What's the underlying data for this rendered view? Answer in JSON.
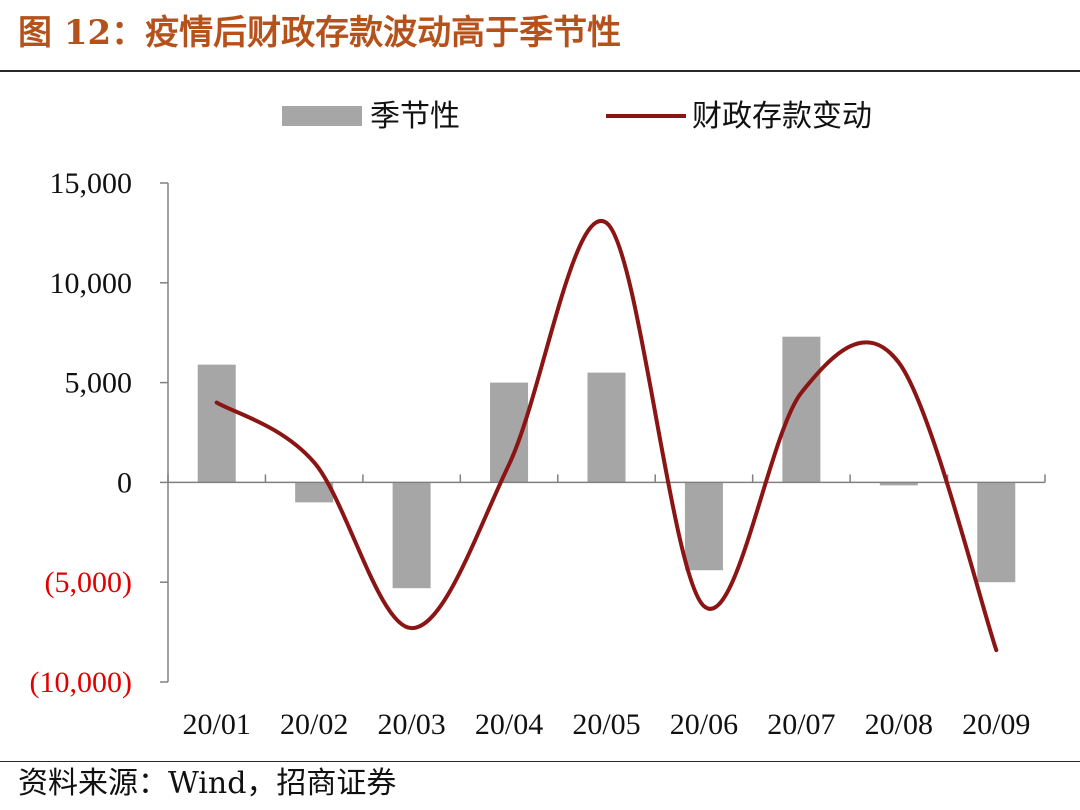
{
  "figure": {
    "title": "图 12：疫情后财政存款波动高于季节性",
    "source": "资料来源：Wind，招商证券"
  },
  "colors": {
    "title": "#b5521c",
    "bar": "#a6a6a6",
    "line": "#8b1414",
    "negative_tick": "#e00000",
    "axis": "#808080",
    "text": "#111111"
  },
  "chart_data": {
    "type": "bar",
    "title": "",
    "xlabel": "",
    "ylabel": "",
    "categories": [
      "20/01",
      "20/02",
      "20/03",
      "20/04",
      "20/05",
      "20/06",
      "20/07",
      "20/08",
      "20/09"
    ],
    "ylim": [
      -10000,
      15000
    ],
    "yticks": [
      15000,
      10000,
      5000,
      0,
      -5000,
      -10000
    ],
    "ytick_labels": [
      "15,000",
      "10,000",
      "5,000",
      "0",
      "(5,000)",
      "(10,000)"
    ],
    "legend_position": "top",
    "grid": false,
    "series": [
      {
        "name": "季节性",
        "type": "bar",
        "values": [
          5900,
          -1000,
          -5300,
          5000,
          5500,
          -4400,
          7300,
          -150,
          -5000
        ]
      },
      {
        "name": "财政存款变动",
        "type": "line",
        "smooth": true,
        "values": [
          4000,
          1000,
          -7300,
          900,
          13000,
          -6200,
          4500,
          6000,
          -8400
        ]
      }
    ]
  }
}
